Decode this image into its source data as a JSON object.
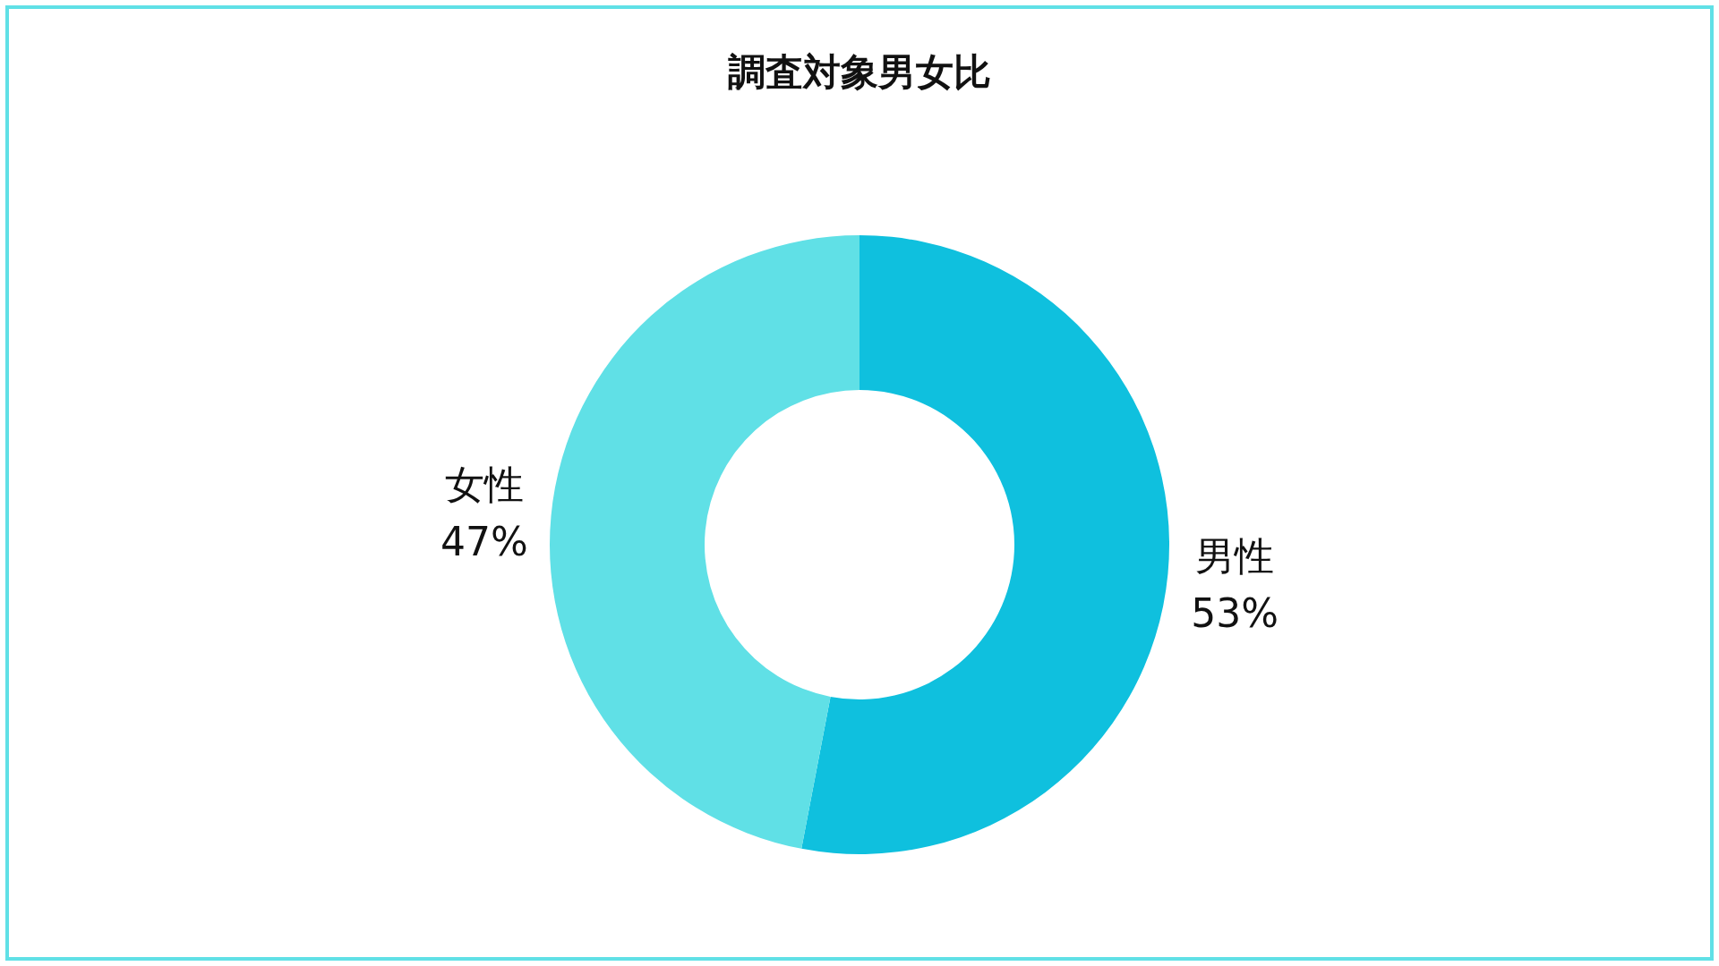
{
  "chart_data": {
    "type": "donut",
    "title": "調査対象男女比",
    "categories": [
      "男性",
      "女性"
    ],
    "values": [
      53,
      47
    ],
    "colors": [
      "#0fc0de",
      "#60e0e6"
    ],
    "value_labels": [
      "53%",
      "47%"
    ]
  }
}
